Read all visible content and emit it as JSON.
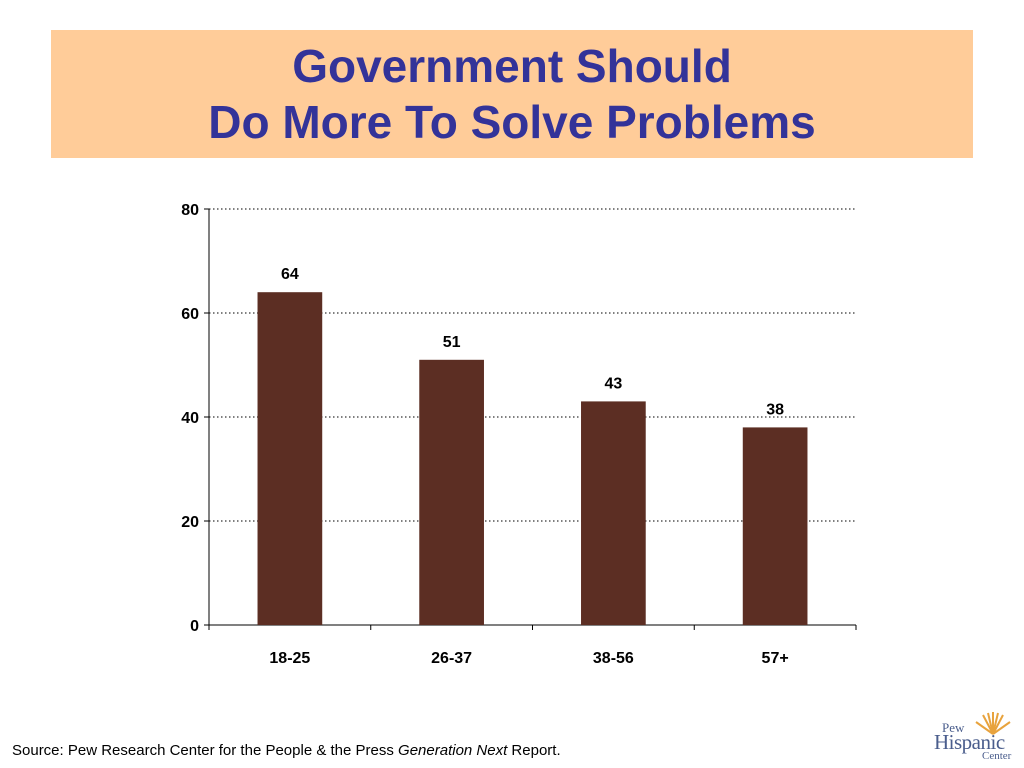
{
  "title": {
    "line1": "Government Should",
    "line2": "Do More To Solve Problems"
  },
  "colors": {
    "title_background": "#ffcc99",
    "title_text": "#333399",
    "bar": "#5c2e23",
    "logo": "#4a5d8c",
    "logo_sun": "#e8a33d"
  },
  "chart_data": {
    "type": "bar",
    "categories": [
      "18-25",
      "26-37",
      "38-56",
      "57+"
    ],
    "values": [
      64,
      51,
      43,
      38
    ],
    "data_labels": [
      "64",
      "51",
      "43",
      "38"
    ],
    "ylim": [
      0,
      80
    ],
    "yticks": [
      0,
      20,
      40,
      60,
      80
    ],
    "xlabel": "",
    "ylabel": "",
    "grid": "dotted horizontal",
    "legend": "none"
  },
  "source": {
    "prefix": "Source:  Pew Research Center for the People & the Press ",
    "italic": "Generation Next",
    "suffix": " Report."
  },
  "logo": {
    "pew": "Pew",
    "hispanic": "Hispanic",
    "center": "Center"
  }
}
